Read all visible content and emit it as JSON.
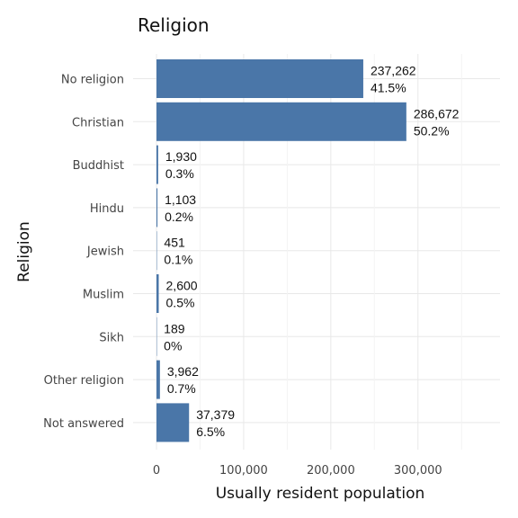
{
  "chart_data": {
    "type": "bar",
    "orientation": "horizontal",
    "title": "Religion",
    "xlabel": "Usually resident population",
    "ylabel": "Religion",
    "categories": [
      "No religion",
      "Christian",
      "Buddhist",
      "Hindu",
      "Jewish",
      "Muslim",
      "Sikh",
      "Other religion",
      "Not answered"
    ],
    "values": [
      237262,
      286672,
      1930,
      1103,
      451,
      2600,
      189,
      3962,
      37379
    ],
    "value_labels": [
      "237,262",
      "286,672",
      "1,930",
      "1,103",
      "451",
      "2,600",
      "189",
      "3,962",
      "37,379"
    ],
    "percent_labels": [
      "41.5%",
      "50.2%",
      "0.3%",
      "0.2%",
      "0.1%",
      "0.5%",
      "0%",
      "0.7%",
      "6.5%"
    ],
    "xticks": [
      0,
      100000,
      200000,
      300000
    ],
    "xtick_labels": [
      "0",
      "100,000",
      "200,000",
      "300,000"
    ],
    "xlim": [
      0,
      350000
    ],
    "grid": true,
    "legend": "none",
    "bar_color": "#4a76a8"
  }
}
